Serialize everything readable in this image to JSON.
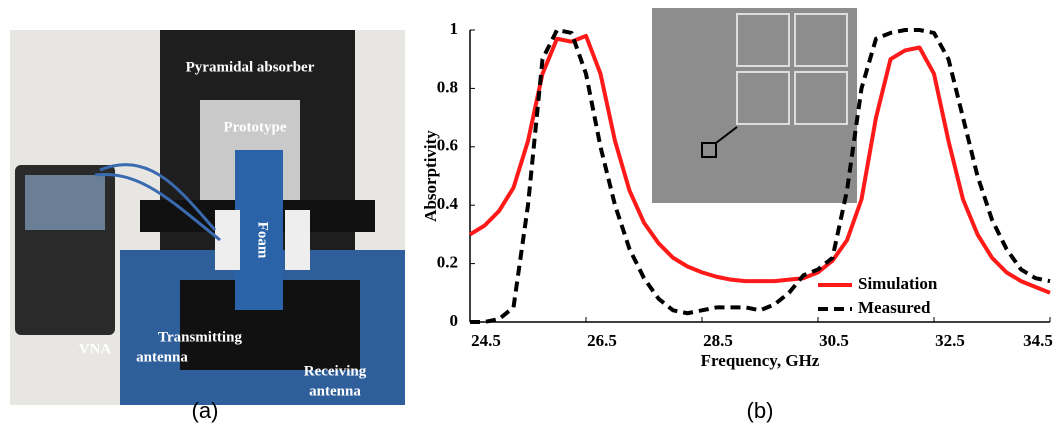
{
  "photo": {
    "caption": "(a)",
    "labels": [
      {
        "lines": [
          "Pyramidal absorber"
        ]
      },
      {
        "lines": [
          "Prototype"
        ]
      },
      {
        "lines": [
          "Foam"
        ]
      },
      {
        "lines": [
          "VNA"
        ]
      },
      {
        "lines": [
          "Transmitting",
          "antenna"
        ]
      },
      {
        "lines": [
          "Receiving",
          "antenna"
        ]
      }
    ]
  },
  "chart_data": {
    "type": "line",
    "caption": "(b)",
    "xlabel": "Frequency, GHz",
    "ylabel": "Absorptivity",
    "x": [
      24.5,
      24.75,
      25.0,
      25.25,
      25.5,
      25.75,
      26.0,
      26.25,
      26.5,
      26.75,
      27.0,
      27.25,
      27.5,
      27.75,
      28.0,
      28.25,
      28.5,
      28.75,
      29.0,
      29.25,
      29.5,
      29.75,
      30.0,
      30.25,
      30.5,
      30.75,
      31.0,
      31.25,
      31.5,
      31.75,
      32.0,
      32.25,
      32.5,
      32.75,
      33.0,
      33.25,
      33.5,
      33.75,
      34.0,
      34.25,
      34.5
    ],
    "series": [
      {
        "name": "Simulation",
        "color": "#ff1a1a",
        "dash": false,
        "values": [
          0.3,
          0.33,
          0.38,
          0.46,
          0.62,
          0.85,
          0.97,
          0.96,
          0.98,
          0.85,
          0.62,
          0.45,
          0.34,
          0.27,
          0.22,
          0.19,
          0.17,
          0.155,
          0.145,
          0.14,
          0.14,
          0.14,
          0.145,
          0.15,
          0.17,
          0.21,
          0.28,
          0.42,
          0.7,
          0.9,
          0.93,
          0.94,
          0.85,
          0.62,
          0.42,
          0.3,
          0.22,
          0.17,
          0.14,
          0.12,
          0.1
        ]
      },
      {
        "name": "Measured",
        "color": "#000000",
        "dash": true,
        "values": [
          0,
          0,
          0.01,
          0.05,
          0.4,
          0.9,
          1.0,
          0.99,
          0.85,
          0.6,
          0.4,
          0.25,
          0.15,
          0.08,
          0.04,
          0.03,
          0.04,
          0.05,
          0.05,
          0.05,
          0.04,
          0.06,
          0.1,
          0.16,
          0.18,
          0.22,
          0.45,
          0.8,
          0.97,
          0.99,
          1.0,
          1.0,
          0.99,
          0.9,
          0.7,
          0.5,
          0.35,
          0.25,
          0.18,
          0.15,
          0.14
        ]
      }
    ],
    "xlim": [
      24.5,
      34.5
    ],
    "xticks": [
      24.5,
      26.5,
      28.5,
      30.5,
      32.5,
      34.5
    ],
    "ylim": [
      0,
      1
    ],
    "yticks": [
      0,
      0.2,
      0.4,
      0.6,
      0.8,
      1
    ],
    "grid": false,
    "legend": "lower right"
  }
}
